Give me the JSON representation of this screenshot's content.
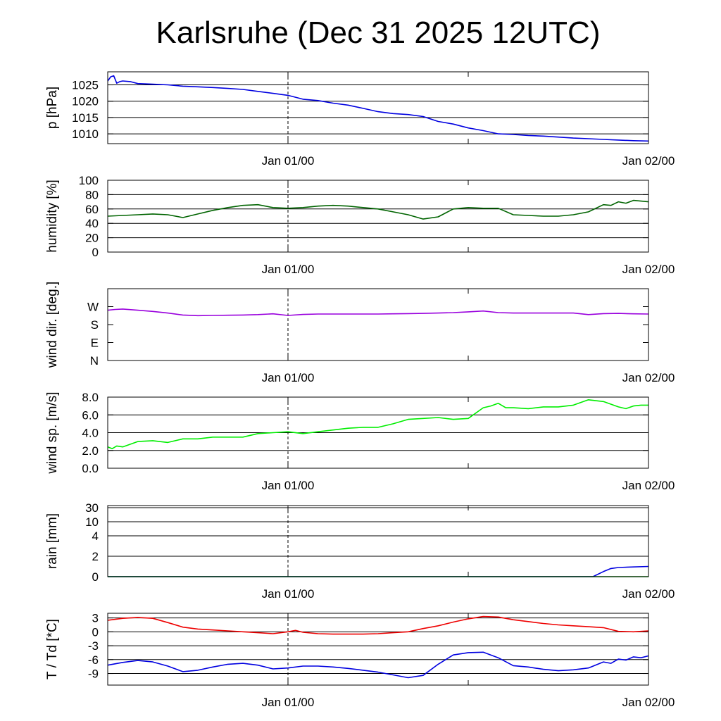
{
  "title": "Karlsruhe (Dec 31 2025 12UTC)",
  "chart_data": [
    {
      "type": "line",
      "id": "pressure",
      "ylabel": "p [hPa]",
      "scale": "linear",
      "ylim": [
        1007,
        1029
      ],
      "yticks": [
        1010,
        1015,
        1020,
        1025
      ],
      "tick_labels": [
        "1010",
        "1015",
        "1020",
        "1025"
      ],
      "gridlines": [
        1010,
        1015,
        1020,
        1025
      ],
      "xlim": [
        0,
        36
      ],
      "xticks": [
        12,
        36
      ],
      "xtick_labels": [
        "Jan 01/00",
        "Jan 02/00"
      ],
      "marker_x": 12,
      "series": [
        {
          "name": "pressure",
          "color": "#0000e0",
          "x": [
            0,
            0.2,
            0.4,
            0.6,
            0.8,
            1,
            1.5,
            2,
            3,
            4,
            5,
            6,
            7,
            8,
            9,
            10,
            11,
            12,
            13,
            14,
            15,
            16,
            17,
            18,
            19,
            20,
            21,
            22,
            23,
            24,
            25,
            26,
            27,
            28,
            29,
            30,
            31,
            32,
            33,
            34,
            35,
            36
          ],
          "y": [
            1026.2,
            1027.5,
            1027.8,
            1025.5,
            1026.0,
            1026.2,
            1026.0,
            1025.4,
            1025.2,
            1025.0,
            1024.6,
            1024.4,
            1024.2,
            1023.9,
            1023.6,
            1023.0,
            1022.4,
            1021.8,
            1020.6,
            1020.2,
            1019.4,
            1018.8,
            1017.8,
            1016.8,
            1016.2,
            1015.9,
            1015.3,
            1013.8,
            1013.0,
            1011.8,
            1011.0,
            1010.0,
            1009.8,
            1009.5,
            1009.3,
            1009.0,
            1008.7,
            1008.5,
            1008.3,
            1008.1,
            1007.9,
            1007.8
          ]
        }
      ]
    },
    {
      "type": "line",
      "id": "humidity",
      "ylabel": "humidity [%]",
      "scale": "linear",
      "ylim": [
        0,
        100
      ],
      "yticks": [
        0,
        20,
        40,
        60,
        80,
        100
      ],
      "tick_labels": [
        "0",
        "20",
        "40",
        "60",
        "80",
        "100"
      ],
      "gridlines": [
        20,
        40,
        60,
        80
      ],
      "xlim": [
        0,
        36
      ],
      "xticks": [
        12,
        36
      ],
      "xtick_labels": [
        "Jan 01/00",
        "Jan 02/00"
      ],
      "marker_x": 12,
      "series": [
        {
          "name": "humidity",
          "color": "#006400",
          "x": [
            0,
            1,
            2,
            3,
            4,
            5,
            6,
            7,
            8,
            9,
            10,
            11,
            12,
            13,
            14,
            15,
            16,
            17,
            18,
            19,
            20,
            21,
            22,
            23,
            24,
            25,
            26,
            27,
            28,
            29,
            30,
            31,
            32,
            33,
            33.5,
            34,
            34.5,
            35,
            35.5,
            36
          ],
          "y": [
            50,
            51,
            52,
            53,
            52,
            48,
            53,
            58,
            62,
            65,
            66,
            62,
            61,
            62,
            64,
            65,
            64,
            62,
            60,
            56,
            52,
            46,
            49,
            60,
            62,
            61,
            61,
            52,
            51,
            50,
            50,
            52,
            56,
            66,
            65,
            70,
            68,
            72,
            71,
            70
          ]
        }
      ]
    },
    {
      "type": "line",
      "id": "wind_direction",
      "ylabel": "wind dir. [deg.]",
      "scale": "linear",
      "ylim": [
        0,
        360
      ],
      "yticks": [
        0,
        90,
        180,
        270
      ],
      "tick_labels": [
        "N",
        "E",
        "S",
        "W"
      ],
      "gridlines": [],
      "xlim": [
        0,
        36
      ],
      "xticks": [
        12,
        36
      ],
      "xtick_labels": [
        "Jan 01/00",
        "Jan 02/00"
      ],
      "marker_x": 12,
      "series": [
        {
          "name": "wind direction",
          "color": "#9900dd",
          "x": [
            0,
            0.5,
            1,
            2,
            3,
            4,
            5,
            6,
            7,
            8,
            9,
            10,
            11,
            12,
            13,
            14,
            15,
            16,
            17,
            18,
            19,
            20,
            21,
            22,
            23,
            24,
            25,
            26,
            27,
            28,
            29,
            30,
            31,
            32,
            33,
            34,
            35,
            36
          ],
          "y": [
            252,
            256,
            258,
            252,
            246,
            238,
            228,
            225,
            226,
            227,
            228,
            230,
            234,
            226,
            231,
            233,
            233,
            233,
            233,
            233,
            234,
            235,
            236,
            238,
            240,
            244,
            248,
            240,
            238,
            238,
            238,
            238,
            238,
            230,
            235,
            236,
            234,
            233
          ]
        }
      ]
    },
    {
      "type": "line",
      "id": "wind_speed",
      "ylabel": "wind sp. [m/s]",
      "scale": "linear",
      "ylim": [
        0,
        8
      ],
      "yticks": [
        0,
        2,
        4,
        6,
        8
      ],
      "tick_labels": [
        "0.0",
        "2.0",
        "4.0",
        "6.0",
        "8.0"
      ],
      "gridlines": [
        2,
        4,
        6,
        8
      ],
      "xlim": [
        0,
        36
      ],
      "xticks": [
        12,
        36
      ],
      "xtick_labels": [
        "Jan 01/00",
        "Jan 02/00"
      ],
      "marker_x": 12,
      "series": [
        {
          "name": "wind speed",
          "color": "#00ee00",
          "x": [
            0,
            0.3,
            0.6,
            1,
            2,
            3,
            4,
            5,
            6,
            7,
            8,
            9,
            10,
            11,
            12,
            13,
            14,
            15,
            16,
            17,
            18,
            19,
            20,
            21,
            22,
            23,
            24,
            25,
            25.5,
            26,
            26.5,
            27,
            28,
            29,
            30,
            31,
            32,
            33,
            34,
            34.5,
            35,
            35.5,
            36
          ],
          "y": [
            2.4,
            2.2,
            2.5,
            2.4,
            3.0,
            3.1,
            2.9,
            3.3,
            3.3,
            3.5,
            3.5,
            3.5,
            3.9,
            4.0,
            4.1,
            3.9,
            4.1,
            4.3,
            4.5,
            4.6,
            4.6,
            5.0,
            5.5,
            5.6,
            5.7,
            5.5,
            5.6,
            6.8,
            7.0,
            7.3,
            6.8,
            6.8,
            6.7,
            6.9,
            6.9,
            7.1,
            7.7,
            7.5,
            6.9,
            6.7,
            7.0,
            7.1,
            7.1
          ]
        }
      ]
    },
    {
      "type": "line",
      "id": "rain",
      "ylabel": "rain [mm]",
      "scale": "nonlinear",
      "ylim": [
        0,
        30
      ],
      "yticks": [
        0,
        2,
        4,
        10,
        30
      ],
      "tick_labels": [
        "0",
        "2",
        "4",
        "10",
        "30"
      ],
      "gridlines": [
        2,
        4,
        10,
        30
      ],
      "xlim": [
        0,
        36
      ],
      "xticks": [
        12,
        36
      ],
      "xtick_labels": [
        "Jan 01/00",
        "Jan 02/00"
      ],
      "marker_x": 12,
      "series": [
        {
          "name": "precipitation",
          "color": "#0000e0",
          "x": [
            0,
            32.3,
            33,
            33.5,
            34,
            35,
            36
          ],
          "y": [
            0,
            0,
            0.5,
            0.8,
            0.9,
            0.95,
            1.0
          ]
        },
        {
          "name": "rain baseline",
          "color": "#00aa00",
          "x": [
            0,
            36
          ],
          "y": [
            0,
            0
          ]
        }
      ]
    },
    {
      "type": "line",
      "id": "temperature_dewpoint",
      "ylabel": "T / Td [*C]",
      "scale": "linear",
      "ylim": [
        -11.5,
        4
      ],
      "yticks": [
        -9,
        -6,
        -3,
        0,
        3
      ],
      "tick_labels": [
        "-9",
        "-6",
        "-3",
        "0",
        "3"
      ],
      "gridlines": [
        -9,
        -6,
        -3,
        0,
        3
      ],
      "xlim": [
        0,
        36
      ],
      "xticks": [
        12,
        36
      ],
      "xtick_labels": [
        "Jan 01/00",
        "Jan 02/00"
      ],
      "marker_x": 12,
      "series": [
        {
          "name": "temperature",
          "color": "#ee0000",
          "x": [
            0,
            1,
            2,
            3,
            4,
            5,
            6,
            7,
            8,
            9,
            10,
            11,
            12,
            12.5,
            13,
            14,
            15,
            16,
            17,
            18,
            19,
            20,
            21,
            22,
            23,
            24,
            25,
            26,
            27,
            28,
            29,
            30,
            31,
            32,
            33,
            34,
            35,
            36
          ],
          "y": [
            2.5,
            2.9,
            3.1,
            2.9,
            2.0,
            1.0,
            0.6,
            0.4,
            0.2,
            0,
            -0.2,
            -0.4,
            0,
            0.3,
            -0.1,
            -0.4,
            -0.5,
            -0.5,
            -0.5,
            -0.4,
            -0.2,
            0,
            0.7,
            1.3,
            2.1,
            2.8,
            3.3,
            3.2,
            2.6,
            2.2,
            1.8,
            1.5,
            1.3,
            1.1,
            0.9,
            0.1,
            0,
            0.2
          ]
        },
        {
          "name": "dewpoint",
          "color": "#0000e0",
          "x": [
            0,
            1,
            2,
            3,
            4,
            5,
            6,
            7,
            8,
            9,
            10,
            11,
            12,
            13,
            14,
            15,
            16,
            17,
            18,
            19,
            20,
            21,
            22,
            23,
            24,
            25,
            26,
            27,
            28,
            29,
            30,
            31,
            32,
            33,
            33.5,
            34,
            34.5,
            35,
            35.5,
            36
          ],
          "y": [
            -7.2,
            -6.6,
            -6.2,
            -6.5,
            -7.4,
            -8.6,
            -8.3,
            -7.6,
            -7.0,
            -6.8,
            -7.2,
            -8.0,
            -7.8,
            -7.4,
            -7.4,
            -7.6,
            -7.9,
            -8.3,
            -8.7,
            -9.3,
            -9.9,
            -9.4,
            -7.0,
            -5.0,
            -4.5,
            -4.4,
            -5.6,
            -7.3,
            -7.6,
            -8.1,
            -8.4,
            -8.2,
            -7.8,
            -6.5,
            -6.8,
            -5.9,
            -6.1,
            -5.4,
            -5.6,
            -5.2
          ]
        }
      ]
    }
  ]
}
